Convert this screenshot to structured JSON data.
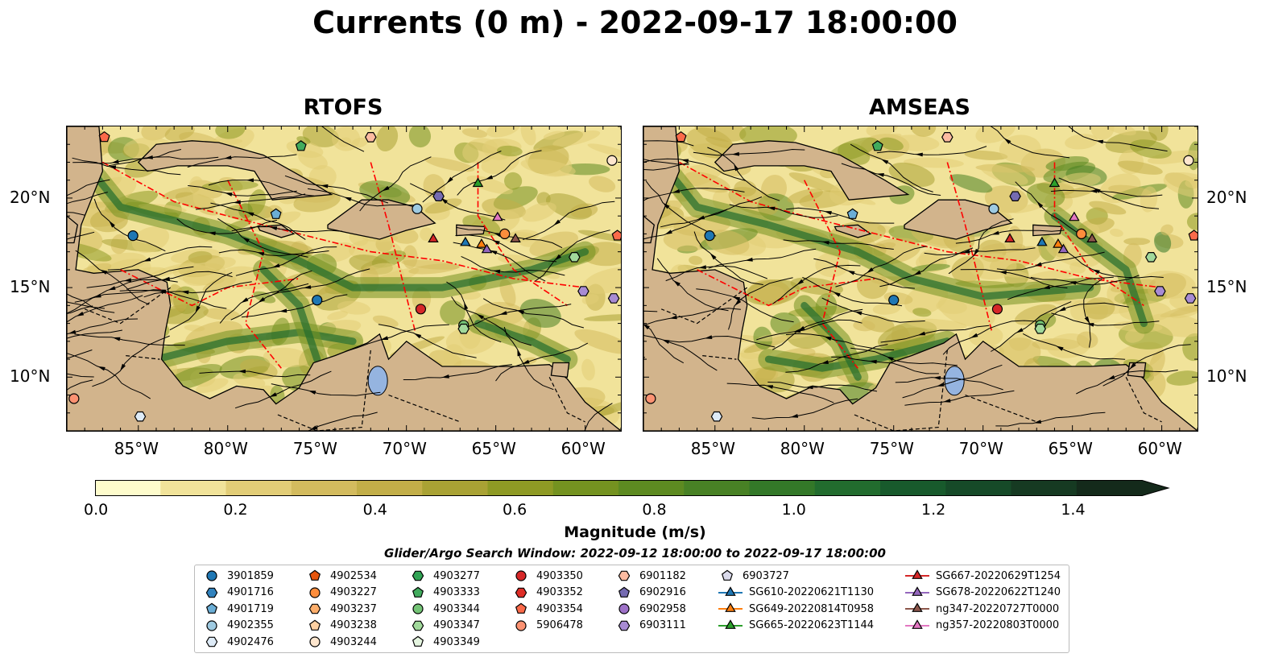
{
  "title": "Currents (0 m) - 2022-09-17 18:00:00",
  "panels": [
    {
      "title": "RTOFS"
    },
    {
      "title": "AMSEAS"
    }
  ],
  "axes": {
    "lon_ticks": [
      "85°W",
      "80°W",
      "75°W",
      "70°W",
      "65°W",
      "60°W"
    ],
    "lat_ticks": [
      "20°N",
      "15°N",
      "10°N"
    ],
    "lon_range": [
      -89,
      -58
    ],
    "lat_range": [
      7,
      24
    ]
  },
  "colorbar": {
    "label": "Magnitude (m/s)",
    "ticks": [
      "0.0",
      "0.2",
      "0.4",
      "0.6",
      "0.8",
      "1.0",
      "1.2",
      "1.4"
    ],
    "range": [
      0,
      1.5
    ],
    "extend": "max",
    "colors": [
      "#fefccc",
      "#f1e39a",
      "#e2cd77",
      "#d3bb5e",
      "#c2ae48",
      "#a9a234",
      "#8e9a24",
      "#749220",
      "#5d8a21",
      "#488125",
      "#337828",
      "#226c2e",
      "#185a2c",
      "#164a28",
      "#163a22",
      "#142a1b"
    ]
  },
  "search_window": "Glider/Argo Search Window: 2022-09-12 18:00:00 to 2022-09-17 18:00:00",
  "colors": {
    "land": "#d2b48c",
    "water": "#95b4e0",
    "eez": "#ff0000",
    "glider_blue": "#1f77b4",
    "glider_orange": "#ff7f0e",
    "glider_green": "#2ca02c",
    "glider_red": "#d62728",
    "glider_purple": "#9467bd",
    "glider_brown": "#8c564b",
    "glider_pink": "#e377c2"
  },
  "legend": [
    {
      "label": "3901859",
      "marker": "circle",
      "color": "#1f77b4"
    },
    {
      "label": "4901716",
      "marker": "hexagon",
      "color": "#3182bd"
    },
    {
      "label": "4901719",
      "marker": "pentagon",
      "color": "#6baed6"
    },
    {
      "label": "4902355",
      "marker": "circle",
      "color": "#9ecae1"
    },
    {
      "label": "4902476",
      "marker": "hexagon",
      "color": "#deebf7"
    },
    {
      "label": "4902534",
      "marker": "pentagon",
      "color": "#e6550d"
    },
    {
      "label": "4903227",
      "marker": "circle",
      "color": "#fd8d3c"
    },
    {
      "label": "4903237",
      "marker": "hexagon",
      "color": "#fdae6b"
    },
    {
      "label": "4903238",
      "marker": "pentagon",
      "color": "#fdd0a2"
    },
    {
      "label": "4903244",
      "marker": "circle",
      "color": "#fee6ce"
    },
    {
      "label": "4903277",
      "marker": "hexagon",
      "color": "#31a354"
    },
    {
      "label": "4903333",
      "marker": "pentagon",
      "color": "#41ab5d"
    },
    {
      "label": "4903344",
      "marker": "circle",
      "color": "#74c476"
    },
    {
      "label": "4903347",
      "marker": "hexagon",
      "color": "#a1d99b"
    },
    {
      "label": "4903349",
      "marker": "pentagon",
      "color": "#e5f5e0"
    },
    {
      "label": "4903350",
      "marker": "circle",
      "color": "#d62728"
    },
    {
      "label": "4903352",
      "marker": "hexagon",
      "color": "#de2d26"
    },
    {
      "label": "4903354",
      "marker": "pentagon",
      "color": "#fb6a4a"
    },
    {
      "label": "5906478",
      "marker": "circle",
      "color": "#fc9272"
    },
    {
      "label": "6901182",
      "marker": "hexagon",
      "color": "#fcbba1"
    },
    {
      "label": "6902916",
      "marker": "pentagon",
      "color": "#756bb1"
    },
    {
      "label": "6902958",
      "marker": "circle",
      "color": "#9e72c8"
    },
    {
      "label": "6903111",
      "marker": "hexagon",
      "color": "#a88bd3"
    },
    {
      "label": "6903727",
      "marker": "pentagon",
      "color": "#dadaeb"
    },
    {
      "label": "SG610-20220621T1130",
      "marker": "triangle",
      "color": "#1f77b4"
    },
    {
      "label": "SG649-20220814T0958",
      "marker": "triangle",
      "color": "#ff7f0e"
    },
    {
      "label": "SG665-20220623T1144",
      "marker": "triangle",
      "color": "#2ca02c"
    },
    {
      "label": "SG667-20220629T1254",
      "marker": "triangle",
      "color": "#d62728"
    },
    {
      "label": "SG678-20220622T1240",
      "marker": "triangle",
      "color": "#9467bd"
    },
    {
      "label": "ng347-20220727T0000",
      "marker": "triangle",
      "color": "#8c564b"
    },
    {
      "label": "ng357-20220803T0000",
      "marker": "triangle",
      "color": "#e377c2"
    }
  ],
  "platforms": [
    {
      "lon": -85.3,
      "lat": 17.9,
      "marker": "circle",
      "color": "#1f77b4"
    },
    {
      "lon": -77.3,
      "lat": 19.1,
      "marker": "pentagon",
      "color": "#6baed6"
    },
    {
      "lon": -69.4,
      "lat": 19.4,
      "marker": "circle",
      "color": "#9ecae1"
    },
    {
      "lon": -75.0,
      "lat": 14.3,
      "marker": "circle",
      "color": "#1f77b4"
    },
    {
      "lon": -69.2,
      "lat": 13.8,
      "marker": "circle",
      "color": "#d62728"
    },
    {
      "lon": -66.8,
      "lat": 12.9,
      "marker": "circle",
      "color": "#74c476"
    },
    {
      "lon": -66.8,
      "lat": 12.7,
      "marker": "hexagon",
      "color": "#a1d99b"
    },
    {
      "lon": -68.2,
      "lat": 20.1,
      "marker": "hexagon",
      "color": "#756bb1"
    },
    {
      "lon": -75.9,
      "lat": 22.9,
      "marker": "pentagon",
      "color": "#41ab5d"
    },
    {
      "lon": -86.9,
      "lat": 23.4,
      "marker": "pentagon",
      "color": "#fb6a4a"
    },
    {
      "lon": -72.0,
      "lat": 23.4,
      "marker": "hexagon",
      "color": "#fcbba1"
    },
    {
      "lon": -58.5,
      "lat": 22.1,
      "marker": "circle",
      "color": "#fee6ce"
    },
    {
      "lon": -58.2,
      "lat": 17.9,
      "marker": "pentagon",
      "color": "#fb6a4a"
    },
    {
      "lon": -60.6,
      "lat": 16.7,
      "marker": "hexagon",
      "color": "#a1d99b"
    },
    {
      "lon": -60.1,
      "lat": 14.8,
      "marker": "hexagon",
      "color": "#a88bd3"
    },
    {
      "lon": -58.4,
      "lat": 14.4,
      "marker": "hexagon",
      "color": "#a88bd3"
    },
    {
      "lon": -88.6,
      "lat": 8.8,
      "marker": "circle",
      "color": "#fc9272"
    },
    {
      "lon": -84.9,
      "lat": 7.8,
      "marker": "hexagon",
      "color": "#deebf7"
    },
    {
      "lon": -64.5,
      "lat": 18.0,
      "marker": "circle",
      "color": "#fd8d3c"
    },
    {
      "lon": -66.7,
      "lat": 17.5,
      "marker": "triangle",
      "color": "#1f77b4"
    },
    {
      "lon": -65.8,
      "lat": 17.4,
      "marker": "triangle",
      "color": "#ff7f0e"
    },
    {
      "lon": -66.0,
      "lat": 20.8,
      "marker": "triangle",
      "color": "#2ca02c"
    },
    {
      "lon": -68.5,
      "lat": 17.7,
      "marker": "triangle",
      "color": "#d62728"
    },
    {
      "lon": -65.5,
      "lat": 17.1,
      "marker": "triangle",
      "color": "#9467bd"
    },
    {
      "lon": -63.9,
      "lat": 17.7,
      "marker": "triangle",
      "color": "#8c564b"
    },
    {
      "lon": -64.9,
      "lat": 18.9,
      "marker": "triangle",
      "color": "#e377c2"
    }
  ]
}
